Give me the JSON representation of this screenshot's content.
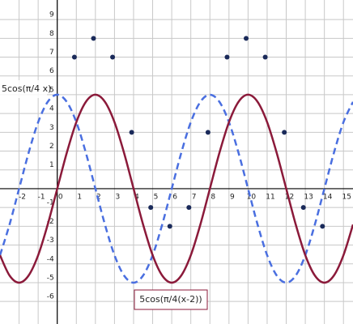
{
  "chart_data": {
    "type": "line",
    "x": [
      -3,
      -2.5,
      -2,
      -1.5,
      -1,
      -0.5,
      0,
      0.5,
      1,
      1.5,
      2,
      2.5,
      3,
      3.5,
      4,
      4.5,
      5,
      5.5,
      6,
      6.5,
      7,
      7.5,
      8,
      8.5,
      9,
      9.5,
      10,
      10.5,
      11,
      11.5,
      12,
      12.5,
      13,
      13.5,
      14,
      14.5,
      15,
      15.5
    ],
    "series": [
      {
        "name": "5cos(π/4 x)",
        "color": "#4a6fe0",
        "dashed": true,
        "values": [
          -3.54,
          -1.91,
          0,
          1.91,
          3.54,
          4.62,
          5,
          4.62,
          3.54,
          1.91,
          0,
          -1.91,
          -3.54,
          -4.62,
          -5,
          -4.62,
          -3.54,
          -1.91,
          0,
          1.91,
          3.54,
          4.62,
          5,
          4.62,
          3.54,
          1.91,
          0,
          -1.91,
          -3.54,
          -4.62,
          -5,
          -4.62,
          -3.54,
          -1.91,
          0,
          1.91,
          3.54,
          4.62
        ]
      },
      {
        "name": "5cos(π/4(x-2))",
        "color": "#8b1a3a",
        "dashed": false,
        "values": [
          -3.54,
          -4.62,
          -5,
          -4.62,
          -3.54,
          -1.91,
          0,
          1.91,
          3.54,
          4.62,
          5,
          4.62,
          3.54,
          1.91,
          0,
          -1.91,
          -3.54,
          -4.62,
          -5,
          -4.62,
          -3.54,
          -1.91,
          0,
          1.91,
          3.54,
          4.62,
          5,
          4.62,
          3.54,
          1.91,
          0,
          -1.91,
          -3.54,
          -4.62,
          -5,
          -4.62,
          -3.54,
          -1.91
        ]
      },
      {
        "type": "scatter",
        "color": "#1a2a5a",
        "x": [
          0.9,
          1.9,
          2.9,
          3.9,
          4.9,
          5.9,
          6.9,
          7.9,
          8.9,
          9.9,
          10.9,
          11.9,
          12.9,
          13.9
        ],
        "values": [
          7,
          8,
          7,
          3,
          -1,
          -2,
          -1,
          3,
          7,
          8,
          7,
          3,
          -1,
          -2
        ]
      }
    ],
    "xlim": [
      -3,
      15.5
    ],
    "ylim": [
      -7.2,
      10.04
    ],
    "xticks": [
      -2,
      -1,
      0,
      1,
      2,
      3,
      4,
      5,
      6,
      7,
      8,
      9,
      10,
      11,
      12,
      13,
      14,
      15
    ],
    "yticks": [
      -6,
      -5,
      -4,
      -3,
      -2,
      -1,
      1,
      2,
      3,
      4,
      5,
      6,
      7,
      8,
      9
    ],
    "grid": true
  }
}
